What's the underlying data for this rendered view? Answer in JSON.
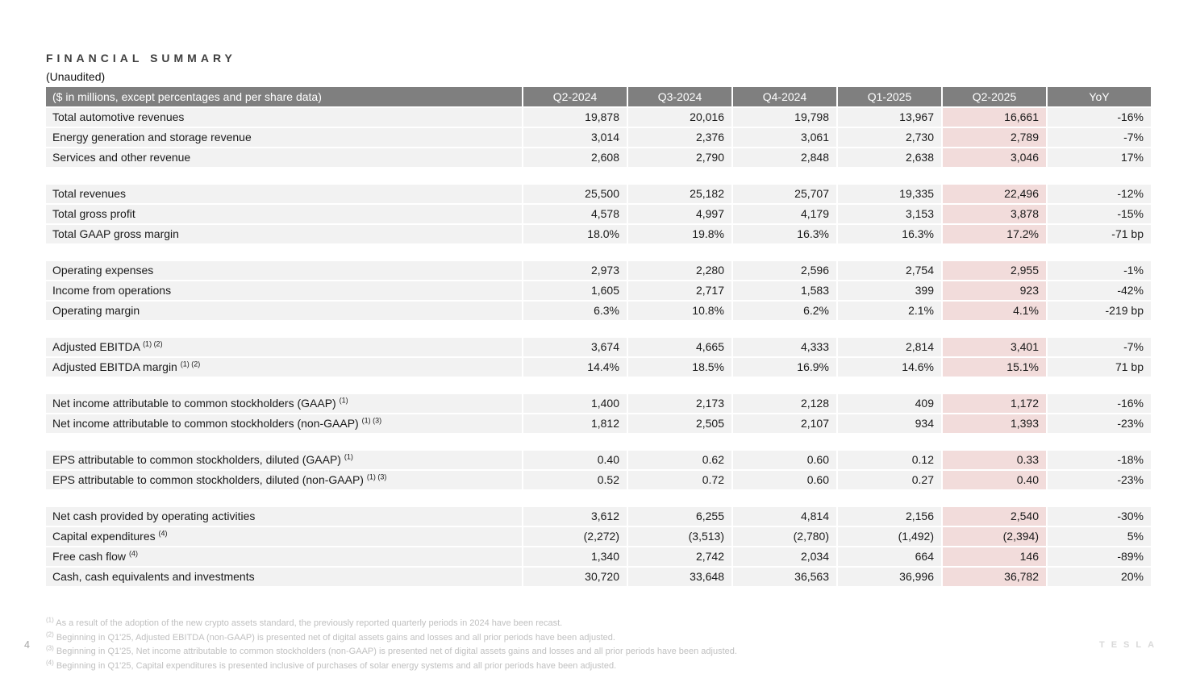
{
  "page": {
    "title": "FINANCIAL SUMMARY",
    "subtitle": "(Unaudited)",
    "page_number": "4",
    "logo_text": "TESLA"
  },
  "colors": {
    "header_bg": "#7f7f7f",
    "header_text": "#ffffff",
    "row_bg": "#f2f2f2",
    "highlight_bg": "#f2dcdb",
    "title_text": "#3f3f3f",
    "footnote_text": "#c0c0c0"
  },
  "table": {
    "header": {
      "label": "($ in millions, except percentages and per share data)",
      "columns": [
        "Q2-2024",
        "Q3-2024",
        "Q4-2024",
        "Q1-2025",
        "Q2-2025",
        "YoY"
      ],
      "highlight_column": "Q2-2025",
      "highlight_column_index": 4
    },
    "groups": [
      {
        "rows": [
          {
            "label": "Total automotive revenues",
            "sup": "",
            "values": [
              "19,878",
              "20,016",
              "19,798",
              "13,967",
              "16,661",
              "-16%"
            ]
          },
          {
            "label": "Energy generation and storage revenue",
            "sup": "",
            "values": [
              "3,014",
              "2,376",
              "3,061",
              "2,730",
              "2,789",
              "-7%"
            ]
          },
          {
            "label": "Services and other revenue",
            "sup": "",
            "values": [
              "2,608",
              "2,790",
              "2,848",
              "2,638",
              "3,046",
              "17%"
            ]
          }
        ]
      },
      {
        "rows": [
          {
            "label": "Total revenues",
            "sup": "",
            "values": [
              "25,500",
              "25,182",
              "25,707",
              "19,335",
              "22,496",
              "-12%"
            ]
          },
          {
            "label": "Total gross profit",
            "sup": "",
            "values": [
              "4,578",
              "4,997",
              "4,179",
              "3,153",
              "3,878",
              "-15%"
            ]
          },
          {
            "label": "Total GAAP gross margin",
            "sup": "",
            "values": [
              "18.0%",
              "19.8%",
              "16.3%",
              "16.3%",
              "17.2%",
              "-71 bp"
            ]
          }
        ]
      },
      {
        "rows": [
          {
            "label": "Operating expenses",
            "sup": "",
            "values": [
              "2,973",
              "2,280",
              "2,596",
              "2,754",
              "2,955",
              "-1%"
            ]
          },
          {
            "label": "Income from operations",
            "sup": "",
            "values": [
              "1,605",
              "2,717",
              "1,583",
              "399",
              "923",
              "-42%"
            ]
          },
          {
            "label": "Operating margin",
            "sup": "",
            "values": [
              "6.3%",
              "10.8%",
              "6.2%",
              "2.1%",
              "4.1%",
              "-219 bp"
            ]
          }
        ]
      },
      {
        "rows": [
          {
            "label": "Adjusted EBITDA",
            "sup": "(1) (2)",
            "values": [
              "3,674",
              "4,665",
              "4,333",
              "2,814",
              "3,401",
              "-7%"
            ]
          },
          {
            "label": "Adjusted EBITDA margin",
            "sup": "(1) (2)",
            "values": [
              "14.4%",
              "18.5%",
              "16.9%",
              "14.6%",
              "15.1%",
              "71 bp"
            ]
          }
        ]
      },
      {
        "rows": [
          {
            "label": "Net income attributable to common stockholders (GAAP)",
            "sup": "(1)",
            "values": [
              "1,400",
              "2,173",
              "2,128",
              "409",
              "1,172",
              "-16%"
            ]
          },
          {
            "label": "Net income attributable to common stockholders (non-GAAP)",
            "sup": "(1) (3)",
            "values": [
              "1,812",
              "2,505",
              "2,107",
              "934",
              "1,393",
              "-23%"
            ]
          }
        ]
      },
      {
        "rows": [
          {
            "label": "EPS attributable to common stockholders, diluted (GAAP)",
            "sup": "(1)",
            "values": [
              "0.40",
              "0.62",
              "0.60",
              "0.12",
              "0.33",
              "-18%"
            ]
          },
          {
            "label": "EPS attributable to common stockholders, diluted (non-GAAP)",
            "sup": "(1) (3)",
            "values": [
              "0.52",
              "0.72",
              "0.60",
              "0.27",
              "0.40",
              "-23%"
            ]
          }
        ]
      },
      {
        "rows": [
          {
            "label": "Net cash provided by operating activities",
            "sup": "",
            "values": [
              "3,612",
              "6,255",
              "4,814",
              "2,156",
              "2,540",
              "-30%"
            ]
          },
          {
            "label": "Capital expenditures",
            "sup": "(4)",
            "values": [
              "(2,272)",
              "(3,513)",
              "(2,780)",
              "(1,492)",
              "(2,394)",
              "5%"
            ]
          },
          {
            "label": "Free cash flow",
            "sup": "(4)",
            "values": [
              "1,340",
              "2,742",
              "2,034",
              "664",
              "146",
              "-89%"
            ]
          },
          {
            "label": "Cash, cash equivalents and investments",
            "sup": "",
            "values": [
              "30,720",
              "33,648",
              "36,563",
              "36,996",
              "36,782",
              "20%"
            ]
          }
        ]
      }
    ],
    "footnotes": [
      {
        "marker": "(1)",
        "text": "As a result of the adoption of the new crypto assets standard, the previously reported quarterly periods in 2024 have been recast."
      },
      {
        "marker": "(2)",
        "text": "Beginning in Q1'25, Adjusted EBITDA (non-GAAP) is presented net of digital assets gains and losses and all prior periods have been adjusted."
      },
      {
        "marker": "(3)",
        "text": "Beginning in Q1'25, Net income attributable to common stockholders (non-GAAP) is presented net of digital assets gains and losses and all prior periods have been adjusted."
      },
      {
        "marker": "(4)",
        "text": "Beginning in Q1'25, Capital expenditures is presented inclusive of purchases of solar energy systems and all prior periods have been adjusted."
      }
    ]
  }
}
